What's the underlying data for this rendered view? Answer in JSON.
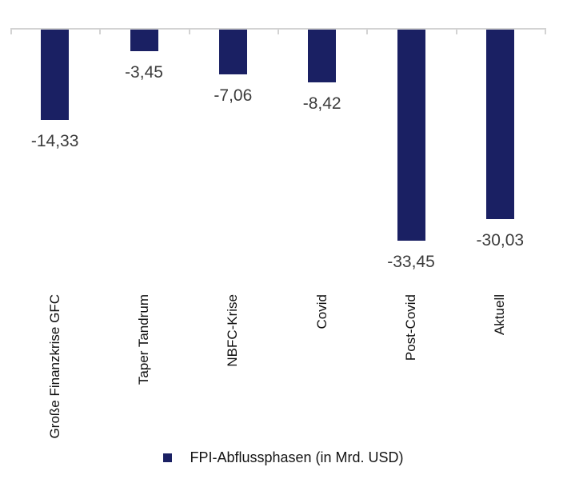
{
  "chart_data": {
    "type": "bar",
    "title": "",
    "categories": [
      "Große Finanzkrise GFC",
      "Taper Tandrum",
      "NBFC-Krise",
      "Covid",
      "Post-Covid",
      "Aktuell"
    ],
    "values": [
      -14.33,
      -3.45,
      -7.06,
      -8.42,
      -33.45,
      -30.03
    ],
    "value_labels": [
      "-14,33",
      "-3,45",
      "-7,06",
      "-8,42",
      "-33,45",
      "-30,03"
    ],
    "ylabel": "",
    "xlabel": "",
    "ylim": [
      -35,
      0
    ],
    "grid": false,
    "axis": {
      "zero_line_visible": true,
      "boundary_ticks": 7,
      "value_labels_position": "below-bar",
      "category_labels_rotation": -90
    },
    "legend": {
      "label": "FPI-Abflussphasen (in Mrd. USD)",
      "position": "bottom-center",
      "marker": "square"
    },
    "colors": {
      "bar": "#1a2063",
      "axis": "#d3d3d3",
      "value_label": "#3c3c3c",
      "category_label": "#101010",
      "legend_text": "#141414",
      "background": "#ffffff"
    }
  }
}
